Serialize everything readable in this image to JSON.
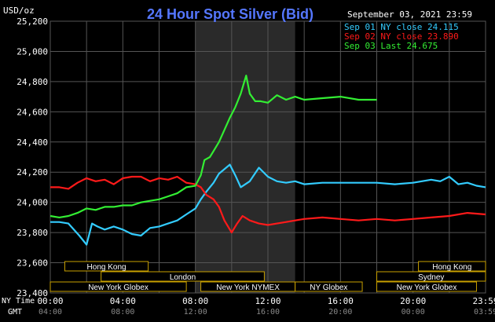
{
  "header": {
    "title": "24 Hour Spot Silver (Bid)",
    "unit_label": "USD/oz",
    "date_label": "September 03, 2021 23:59"
  },
  "legend": [
    {
      "label": "Sep 01 NY close 24.115",
      "color": "#33ccff"
    },
    {
      "label": "Sep 02 NY close 23.890",
      "color": "#ff1a1a"
    },
    {
      "label": "Sep 03 Last 24.675",
      "color": "#33ee33"
    }
  ],
  "axis": {
    "ny_time_label": "NY Time",
    "gmt_label": "GMT",
    "ny_ticks": [
      "00:00",
      "04:00",
      "08:00",
      "12:00",
      "16:00",
      "20:00",
      "23:59"
    ],
    "gmt_ticks": [
      "04:00",
      "08:00",
      "12:00",
      "16:00",
      "20:00",
      "00:00",
      "03:59"
    ]
  },
  "markets": [
    {
      "label": "Hong Kong",
      "start": 0.8,
      "end": 5.4
    },
    {
      "label": "Hong Kong",
      "start": 20.3,
      "end": 24.0
    },
    {
      "label": "London",
      "start": 2.8,
      "end": 11.8
    },
    {
      "label": "Sydney",
      "start": 18.0,
      "end": 24.0
    },
    {
      "label": "New York Globex",
      "start": -0.2,
      "end": 7.5
    },
    {
      "label": "New York NYMEX",
      "start": 8.3,
      "end": 13.5
    },
    {
      "label": "NY Globex",
      "start": 13.5,
      "end": 17.2
    },
    {
      "label": "New York Globex",
      "start": 18.0,
      "end": 23.5
    }
  ],
  "colors": {
    "background": "#000000",
    "grid": "#555555",
    "highlight": "#2a2a2a",
    "axis_text": "#ffffff",
    "title": "#5577ff",
    "market_box": "#c8a000"
  },
  "chart_data": {
    "type": "line",
    "title": "24 Hour Spot Silver (Bid)",
    "ylabel": "USD/oz",
    "xlabel": "",
    "xlim": [
      0,
      24
    ],
    "ylim": [
      23.4,
      25.2
    ],
    "yticks": [
      "23,400",
      "23,600",
      "23,800",
      "24,000",
      "24,200",
      "24,400",
      "24,600",
      "24,800",
      "25,000",
      "25,200"
    ],
    "yticks_values": [
      23.4,
      23.6,
      23.8,
      24.0,
      24.2,
      24.4,
      24.6,
      24.8,
      25.0,
      25.2
    ],
    "grid": true,
    "highlight_range": [
      8,
      13.5
    ],
    "legend_position": "top-right",
    "series": [
      {
        "name": "Sep 01 NY close 24.115",
        "color": "#33ccff",
        "x": [
          0,
          0.5,
          1.0,
          1.6,
          2.0,
          2.3,
          2.6,
          3.0,
          3.5,
          4.0,
          4.5,
          5.0,
          5.5,
          6.0,
          6.5,
          7.0,
          7.5,
          8.0,
          8.3,
          8.6,
          9.0,
          9.3,
          9.6,
          9.9,
          10.2,
          10.5,
          11.0,
          11.5,
          12.0,
          12.5,
          13.0,
          13.5,
          14.0,
          15.0,
          16.0,
          17.0,
          18.0,
          19.0,
          20.0,
          21.0,
          21.5,
          22.0,
          22.5,
          23.0,
          23.5,
          24.0
        ],
        "values": [
          23.87,
          23.87,
          23.86,
          23.78,
          23.72,
          23.86,
          23.84,
          23.82,
          23.84,
          23.82,
          23.79,
          23.78,
          23.83,
          23.84,
          23.86,
          23.88,
          23.92,
          23.96,
          24.02,
          24.07,
          24.13,
          24.19,
          24.22,
          24.25,
          24.18,
          24.1,
          24.14,
          24.23,
          24.17,
          24.14,
          24.13,
          24.14,
          24.12,
          24.13,
          24.13,
          24.13,
          24.13,
          24.12,
          24.13,
          24.15,
          24.14,
          24.17,
          24.12,
          24.13,
          24.11,
          24.1
        ]
      },
      {
        "name": "Sep 02 NY close 23.890",
        "color": "#ff1a1a",
        "x": [
          0,
          0.5,
          1.0,
          1.5,
          2.0,
          2.5,
          3.0,
          3.5,
          4.0,
          4.5,
          5.0,
          5.5,
          6.0,
          6.5,
          7.0,
          7.5,
          8.0,
          8.3,
          8.6,
          9.0,
          9.3,
          9.6,
          10.0,
          10.3,
          10.6,
          11.0,
          11.5,
          12.0,
          12.5,
          13.0,
          13.5,
          14.0,
          15.0,
          16.0,
          17.0,
          18.0,
          19.0,
          20.0,
          21.0,
          22.0,
          23.0,
          24.0
        ],
        "values": [
          24.1,
          24.1,
          24.09,
          24.13,
          24.16,
          24.14,
          24.15,
          24.12,
          24.16,
          24.17,
          24.17,
          24.14,
          24.16,
          24.15,
          24.17,
          24.13,
          24.12,
          24.1,
          24.05,
          24.02,
          23.97,
          23.88,
          23.8,
          23.86,
          23.91,
          23.88,
          23.86,
          23.85,
          23.86,
          23.87,
          23.88,
          23.89,
          23.9,
          23.89,
          23.88,
          23.89,
          23.88,
          23.89,
          23.9,
          23.91,
          23.93,
          23.92
        ]
      },
      {
        "name": "Sep 03 Last 24.675",
        "color": "#33ee33",
        "x": [
          0,
          0.5,
          1.0,
          1.5,
          2.0,
          2.5,
          3.0,
          3.5,
          4.0,
          4.5,
          5.0,
          5.5,
          6.0,
          6.5,
          7.0,
          7.5,
          8.0,
          8.3,
          8.5,
          8.8,
          9.0,
          9.3,
          9.6,
          9.9,
          10.2,
          10.5,
          10.8,
          11.0,
          11.3,
          11.6,
          12.0,
          12.5,
          13.0,
          13.5,
          14.0,
          15.0,
          16.0,
          17.0,
          17.5,
          18.0
        ],
        "values": [
          23.91,
          23.9,
          23.91,
          23.93,
          23.96,
          23.95,
          23.97,
          23.97,
          23.98,
          23.98,
          24.0,
          24.01,
          24.02,
          24.04,
          24.06,
          24.1,
          24.11,
          24.18,
          24.28,
          24.3,
          24.34,
          24.4,
          24.48,
          24.56,
          24.63,
          24.72,
          24.84,
          24.72,
          24.67,
          24.67,
          24.66,
          24.71,
          24.68,
          24.7,
          24.68,
          24.69,
          24.7,
          24.68,
          24.68,
          24.68
        ]
      }
    ]
  }
}
